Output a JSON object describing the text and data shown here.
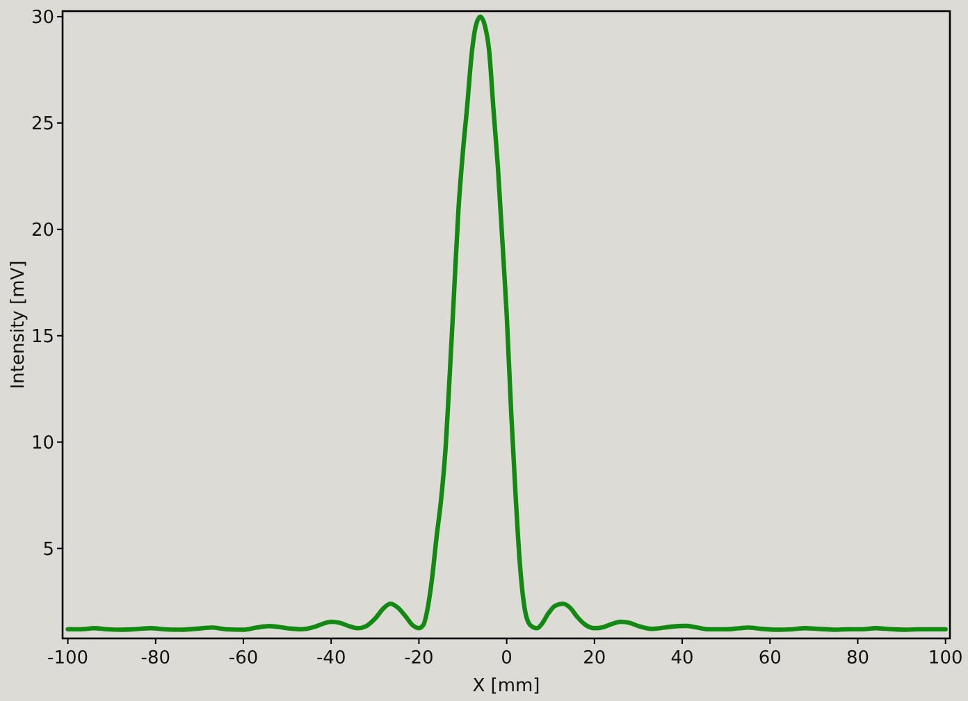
{
  "chart_data": {
    "type": "line",
    "xlabel": "X [mm]",
    "ylabel": "Intensity [mV]",
    "xlim": [
      -101.2,
      101
    ],
    "ylim": [
      0.77,
      30.26
    ],
    "xticks": [
      -100,
      -80,
      -60,
      -40,
      -20,
      0,
      20,
      40,
      60,
      80,
      100
    ],
    "yticks": [
      5,
      10,
      15,
      20,
      25,
      30
    ],
    "grid": false,
    "marker": "none",
    "line_style": "solid",
    "series": [
      {
        "color": "#128a12",
        "x": [
          -100,
          -97,
          -94,
          -91,
          -88,
          -85,
          -81,
          -78,
          -74,
          -71,
          -67,
          -64,
          -60,
          -57,
          -54,
          -50,
          -47,
          -44,
          -42,
          -40,
          -38,
          -36,
          -34,
          -32,
          -30,
          -28,
          -26.5,
          -25,
          -23,
          -21.5,
          -20,
          -19,
          -18,
          -17,
          -16,
          -15,
          -14,
          -13,
          -12,
          -11,
          -10,
          -9,
          -8,
          -7,
          -6,
          -5,
          -4,
          -3,
          -2,
          -1,
          0,
          1,
          2,
          3,
          4,
          5,
          6,
          7,
          8,
          9.5,
          11,
          12.8,
          14.5,
          16,
          18,
          20,
          22,
          24,
          26,
          28,
          30,
          33,
          36,
          39,
          41,
          43,
          46,
          50,
          53,
          55,
          58,
          62,
          65,
          68,
          71,
          75,
          78,
          81,
          84,
          88,
          91,
          94,
          97,
          100
        ],
        "values": [
          1.2,
          1.2,
          1.25,
          1.2,
          1.18,
          1.2,
          1.25,
          1.2,
          1.18,
          1.22,
          1.28,
          1.2,
          1.18,
          1.28,
          1.35,
          1.25,
          1.2,
          1.3,
          1.45,
          1.55,
          1.5,
          1.35,
          1.25,
          1.35,
          1.7,
          2.2,
          2.4,
          2.25,
          1.8,
          1.4,
          1.25,
          1.4,
          2.2,
          3.6,
          5.5,
          7.2,
          9.5,
          13.1,
          17.0,
          20.9,
          23.6,
          25.8,
          28.2,
          29.6,
          30.0,
          29.6,
          28.4,
          25.6,
          22.9,
          19.5,
          16.0,
          11.5,
          7.6,
          4.3,
          2.3,
          1.5,
          1.3,
          1.25,
          1.45,
          1.95,
          2.3,
          2.4,
          2.2,
          1.8,
          1.4,
          1.25,
          1.3,
          1.45,
          1.55,
          1.5,
          1.35,
          1.22,
          1.28,
          1.35,
          1.36,
          1.3,
          1.2,
          1.2,
          1.25,
          1.28,
          1.22,
          1.18,
          1.2,
          1.25,
          1.22,
          1.18,
          1.2,
          1.2,
          1.25,
          1.2,
          1.18,
          1.2,
          1.2,
          1.2
        ]
      }
    ]
  }
}
